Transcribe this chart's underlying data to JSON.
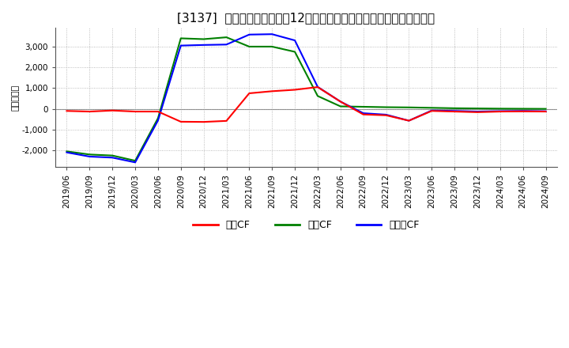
{
  "title": "[3137]  キャッシュフローの12か月移動合計の対前年同期増減額の推移",
  "ylabel": "（百万円）",
  "background_color": "#ffffff",
  "plot_bg_color": "#ffffff",
  "grid_color": "#aaaaaa",
  "zero_line_color": "#888888",
  "ylim": [
    -2800,
    3900
  ],
  "yticks": [
    -2000,
    -1000,
    0,
    1000,
    2000,
    3000
  ],
  "x_labels": [
    "2019/06",
    "2019/09",
    "2019/12",
    "2020/03",
    "2020/06",
    "2020/09",
    "2020/12",
    "2021/03",
    "2021/06",
    "2021/09",
    "2021/12",
    "2022/03",
    "2022/06",
    "2022/09",
    "2022/12",
    "2023/03",
    "2023/06",
    "2023/09",
    "2023/12",
    "2024/03",
    "2024/06",
    "2024/09"
  ],
  "series": {
    "営業CF": {
      "color": "#ff0000",
      "values": [
        -100,
        -130,
        -80,
        -130,
        -130,
        -620,
        -630,
        -580,
        750,
        850,
        920,
        1050,
        350,
        -270,
        -310,
        -570,
        -100,
        -130,
        -160,
        -130,
        -120,
        -130
      ]
    },
    "投賃CF": {
      "color": "#008000",
      "values": [
        -2050,
        -2200,
        -2250,
        -2500,
        -450,
        3400,
        3360,
        3450,
        3000,
        3000,
        2750,
        620,
        120,
        100,
        80,
        70,
        50,
        30,
        20,
        10,
        5,
        0
      ]
    },
    "フリーCF": {
      "color": "#0000ff",
      "values": [
        -2100,
        -2300,
        -2350,
        -2580,
        -560,
        3050,
        3080,
        3100,
        3580,
        3600,
        3300,
        1060,
        350,
        -210,
        -280,
        -570,
        -80,
        -100,
        -130,
        -110,
        -100,
        -115
      ]
    }
  },
  "legend_labels": [
    "営業CF",
    "投賃CF",
    "フリーCF"
  ],
  "legend_colors": [
    "#ff0000",
    "#008000",
    "#0000ff"
  ],
  "title_fontsize": 11,
  "tick_fontsize": 7.5,
  "ylabel_fontsize": 8
}
